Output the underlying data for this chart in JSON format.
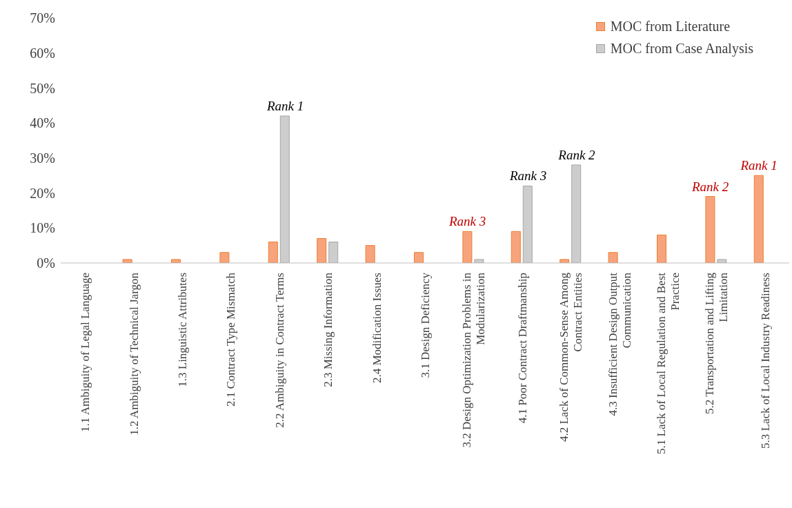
{
  "chart_data": {
    "type": "bar",
    "categories": [
      "1.1 Ambiguity of Legal Language",
      "1.2 Ambiguity of Technical Jargon",
      "1.3 Linguistic Attributes",
      "2.1 Contract Type Mismatch",
      "2.2 Ambiguity in Contract Terms",
      "2.3 Missing Information",
      "2.4 Modification Issues",
      "3.1 Design Deficiency",
      "3.2 Design Optimization Problems in Modularization",
      "4.1 Poor Contract Draftmanship",
      "4.2 Lack of Common-Sense Among Contract Entities",
      "4.3 Insufficient Design Output Communication",
      "5.1 Lack of Local Regulation and Best Practice",
      "5.2 Transportation and Lifting Limitation",
      "5.3 Lack of Local Industry Readiness"
    ],
    "series": [
      {
        "name": "MOC from Literature",
        "color": "#f7a47c",
        "values": [
          0,
          1,
          1,
          3,
          6,
          7,
          5,
          3,
          9,
          9,
          1,
          3,
          8,
          19,
          25
        ]
      },
      {
        "name": "MOC from Case Analysis",
        "color": "#cdcdcd",
        "values": [
          0,
          0,
          0,
          0,
          42,
          6,
          0,
          0,
          1,
          22,
          28,
          0,
          0,
          1,
          0
        ]
      }
    ],
    "ylim": [
      0,
      70
    ],
    "yticks": [
      {
        "value": 0,
        "label": "0%"
      },
      {
        "value": 10,
        "label": "10%"
      },
      {
        "value": 20,
        "label": "20%"
      },
      {
        "value": 30,
        "label": "30%"
      },
      {
        "value": 40,
        "label": "40%"
      },
      {
        "value": 50,
        "label": "50%"
      },
      {
        "value": 60,
        "label": "60%"
      },
      {
        "value": 70,
        "label": "70%"
      }
    ],
    "legend": "top right",
    "annotations": [
      {
        "text": "Rank 1",
        "x": "2.2 Ambiguity in Contract Terms",
        "y": 42
      },
      {
        "text": "Rank 3",
        "x": "4.1 Poor Contract Draftmanship",
        "y": 22
      },
      {
        "text": "Rank 2",
        "x": "4.2 Lack of Common-Sense Among Contract Entities",
        "y": 28
      },
      {
        "text": "Rank 3",
        "x": "3.2 Design Optimization Problems in Modularization",
        "y": 9
      },
      {
        "text": "Rank 2",
        "x": "5.2 Transportation and Lifting Limitation",
        "y": 19
      },
      {
        "text": "Rank 1",
        "x": "5.3 Lack of Local Industry Readiness",
        "y": 25
      }
    ]
  }
}
